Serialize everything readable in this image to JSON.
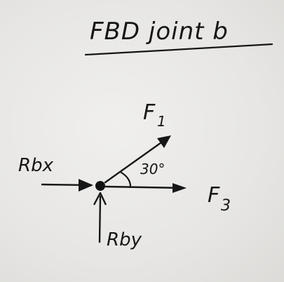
{
  "diagram": {
    "title": "FBD joint b",
    "forces": {
      "f1": "F",
      "f1_sub": "1",
      "f3": "F",
      "f3_sub": "3",
      "rbx": "Rbx",
      "rby": "Rby"
    },
    "angle": "30°"
  },
  "colors": {
    "ink": "#161616",
    "paper": "#e9e8e6"
  }
}
